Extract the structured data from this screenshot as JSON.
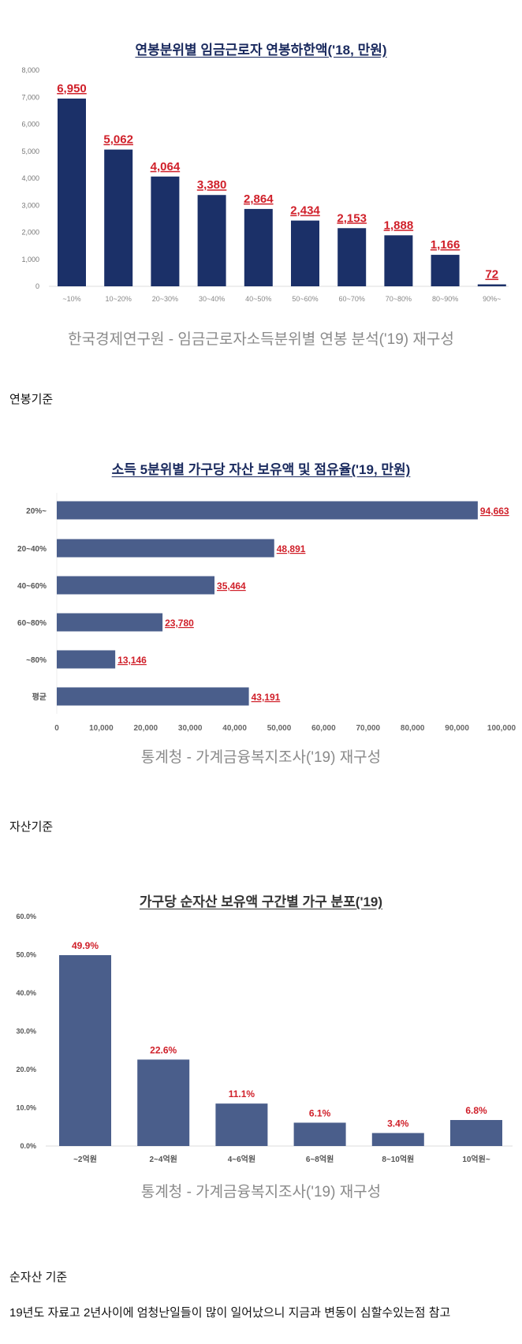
{
  "captions": {
    "salary": "연봉기준",
    "assets": "자산기준",
    "net_assets": "순자산 기준",
    "note": "19년도 자료고 2년사이에 엄청난일들이 많이 일어났으니 지금과 변동이 심할수있는점 참고"
  },
  "chart_data": [
    {
      "type": "bar",
      "title": "연봉분위별 임금근로자 연봉하한액('18, 만원)",
      "source": "한국경제연구원 - 임금근로자소득분위별 연봉 분석('19) 재구성",
      "categories": [
        "~10%",
        "10~20%",
        "20~30%",
        "30~40%",
        "40~50%",
        "50~60%",
        "60~70%",
        "70~80%",
        "80~90%",
        "90%~"
      ],
      "values": [
        6950,
        5062,
        4064,
        3380,
        2864,
        2434,
        2153,
        1888,
        1166,
        72
      ],
      "value_labels": [
        "6,950",
        "5,062",
        "4,064",
        "3,380",
        "2,864",
        "2,434",
        "2,153",
        "1,888",
        "1,166",
        "72"
      ],
      "ylim": [
        0,
        8000
      ],
      "yticks": [
        "0",
        "1,000",
        "2,000",
        "3,000",
        "4,000",
        "5,000",
        "6,000",
        "7,000",
        "8,000"
      ],
      "bar_color": "#1b3068",
      "label_color": "#d0202a"
    },
    {
      "type": "bar",
      "orientation": "horizontal",
      "title": "소득 5분위별 가구당 자산 보유액 및 점유율('19, 만원)",
      "source": "통계청 - 가계금융복지조사('19) 재구성",
      "categories": [
        "20%~",
        "20~40%",
        "40~60%",
        "60~80%",
        "~80%",
        "평균"
      ],
      "values": [
        94663,
        48891,
        35464,
        23780,
        13146,
        43191
      ],
      "value_labels": [
        "94,663",
        "48,891",
        "35,464",
        "23,780",
        "13,146",
        "43,191"
      ],
      "xlim": [
        0,
        100000
      ],
      "xticks": [
        "0",
        "10,000",
        "20,000",
        "30,000",
        "40,000",
        "50,000",
        "60,000",
        "70,000",
        "80,000",
        "90,000",
        "100,000"
      ],
      "bar_color": "#4a5e8b",
      "label_color": "#d0202a"
    },
    {
      "type": "bar",
      "title": "가구당 순자산 보유액 구간별 가구 분포('19)",
      "source": "통계청 - 가계금융복지조사('19) 재구성",
      "categories": [
        "~2억원",
        "2~4억원",
        "4~6억원",
        "6~8억원",
        "8~10억원",
        "10억원~"
      ],
      "values": [
        49.9,
        22.6,
        11.1,
        6.1,
        3.4,
        6.8
      ],
      "value_labels": [
        "49.9%",
        "22.6%",
        "11.1%",
        "6.1%",
        "3.4%",
        "6.8%"
      ],
      "ylim": [
        0,
        60
      ],
      "yticks": [
        "0.0%",
        "10.0%",
        "20.0%",
        "30.0%",
        "40.0%",
        "50.0%",
        "60.0%"
      ],
      "bar_color": "#4a5e8b",
      "label_color": "#d0202a"
    }
  ]
}
